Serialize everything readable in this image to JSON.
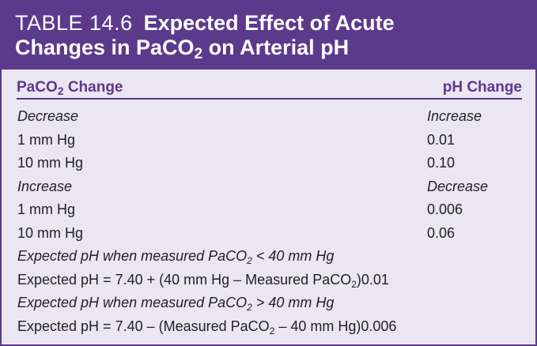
{
  "table": {
    "label": "TABLE 14.6",
    "title_line1": "Expected Effect of Acute",
    "title_line2_pre": "Changes in PaCO",
    "title_line2_sub": "2",
    "title_line2_post": " on Arterial pH"
  },
  "columns": {
    "left_pre": "PaCO",
    "left_sub": "2",
    "left_post": " Change",
    "right": "pH Change"
  },
  "rows": [
    {
      "left": "Decrease",
      "right": "Increase"
    },
    {
      "left": "1 mm Hg",
      "right": "0.01"
    },
    {
      "left": "10 mm Hg",
      "right": "0.10"
    },
    {
      "left": "Increase",
      "right": "Decrease"
    },
    {
      "left": "1 mm Hg",
      "right": "0.006"
    },
    {
      "left": "10 mm Hg",
      "right": "0.06"
    }
  ],
  "formulas": [
    {
      "pre": "Expected pH when measured PaCO",
      "sub": "2",
      "post": " < 40 mm Hg"
    },
    {
      "pre": "Expected pH = 7.40 + (40 mm Hg – Measured PaCO",
      "sub": "2",
      "post": ")0.01"
    },
    {
      "pre": "Expected pH when measured PaCO",
      "sub": "2",
      "post": " > 40 mm Hg"
    },
    {
      "pre": "Expected pH = 7.40 – (Measured PaCO",
      "sub": "2",
      "post": " – 40 mm Hg)0.006"
    }
  ]
}
